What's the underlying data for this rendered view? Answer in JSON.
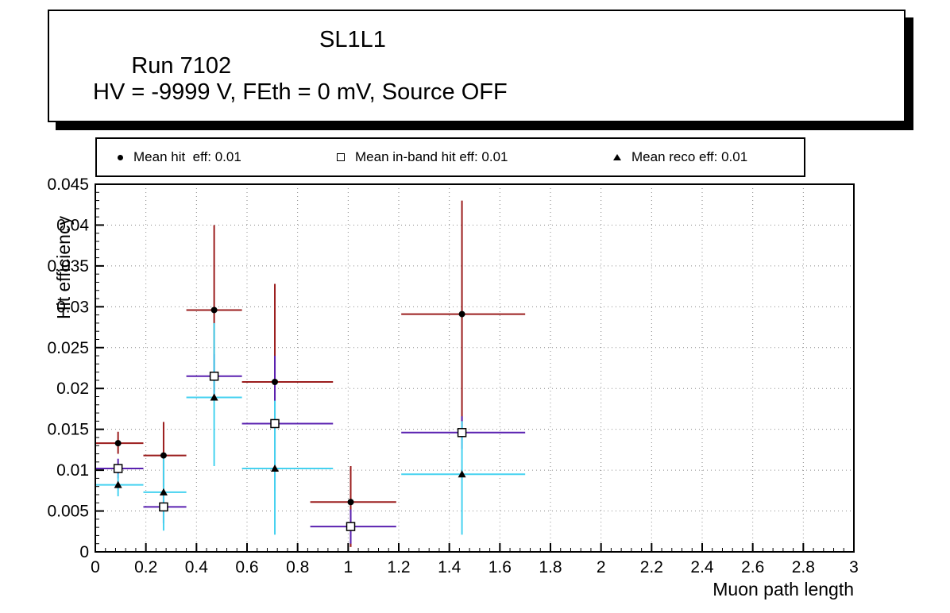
{
  "title_box": {
    "run": "Run 7102",
    "chamber": "SL1L1",
    "conditions": "HV = -9999 V, FEth = 0 mV, Source OFF"
  },
  "colors": {
    "hit_eff": "#9b1d1d",
    "inband_eff": "#5a21b0",
    "reco_eff": "#46d2f0",
    "grid": "#8a8a8a",
    "frame": "#000000"
  },
  "chart_data": {
    "type": "scatter",
    "title": "",
    "xlabel": "Muon path length",
    "ylabel": "Hit efficiency",
    "xlim": [
      0,
      3
    ],
    "ylim": [
      0,
      0.045
    ],
    "xticks": [
      0,
      0.2,
      0.4,
      0.6,
      0.8,
      1,
      1.2,
      1.4,
      1.6,
      1.8,
      2,
      2.2,
      2.4,
      2.6,
      2.8,
      3
    ],
    "yticks": [
      0,
      0.005,
      0.01,
      0.015,
      0.02,
      0.025,
      0.03,
      0.035,
      0.04,
      0.045
    ],
    "grid": "dotted",
    "legend_position": "top",
    "series": [
      {
        "name": "Mean hit  eff: 0.01",
        "marker": "circle",
        "color": "#9b1d1d",
        "points": [
          {
            "x": 0.09,
            "y": 0.0133,
            "xlow": 0.0,
            "xhigh": 0.19,
            "ylow": 0.012,
            "yhigh": 0.0147
          },
          {
            "x": 0.27,
            "y": 0.0118,
            "xlow": 0.19,
            "xhigh": 0.36,
            "ylow": 0.0079,
            "yhigh": 0.0159
          },
          {
            "x": 0.47,
            "y": 0.0296,
            "xlow": 0.36,
            "xhigh": 0.58,
            "ylow": 0.0196,
            "yhigh": 0.04
          },
          {
            "x": 0.71,
            "y": 0.0208,
            "xlow": 0.58,
            "xhigh": 0.94,
            "ylow": 0.009,
            "yhigh": 0.0328
          },
          {
            "x": 1.01,
            "y": 0.0061,
            "xlow": 0.85,
            "xhigh": 1.19,
            "ylow": 0.0006,
            "yhigh": 0.0105
          },
          {
            "x": 1.45,
            "y": 0.0291,
            "xlow": 1.21,
            "xhigh": 1.7,
            "ylow": 0.0146,
            "yhigh": 0.043
          }
        ]
      },
      {
        "name": "Mean in-band hit eff: 0.01",
        "marker": "open-square",
        "color": "#5a21b0",
        "points": [
          {
            "x": 0.09,
            "y": 0.0102,
            "xlow": 0.0,
            "xhigh": 0.19,
            "ylow": 0.009,
            "yhigh": 0.0114
          },
          {
            "x": 0.27,
            "y": 0.0055,
            "xlow": 0.19,
            "xhigh": 0.36,
            "ylow": 0.0035,
            "yhigh": 0.0076
          },
          {
            "x": 0.47,
            "y": 0.0215,
            "xlow": 0.36,
            "xhigh": 0.58,
            "ylow": 0.019,
            "yhigh": 0.0242
          },
          {
            "x": 0.71,
            "y": 0.0157,
            "xlow": 0.58,
            "xhigh": 0.94,
            "ylow": 0.0075,
            "yhigh": 0.024
          },
          {
            "x": 1.01,
            "y": 0.0031,
            "xlow": 0.85,
            "xhigh": 1.19,
            "ylow": 0.001,
            "yhigh": 0.0052
          },
          {
            "x": 1.45,
            "y": 0.0146,
            "xlow": 1.21,
            "xhigh": 1.7,
            "ylow": 0.0126,
            "yhigh": 0.0166
          }
        ]
      },
      {
        "name": "Mean reco eff: 0.01",
        "marker": "triangle",
        "color": "#46d2f0",
        "points": [
          {
            "x": 0.09,
            "y": 0.0082,
            "xlow": 0.0,
            "xhigh": 0.19,
            "ylow": 0.0068,
            "yhigh": 0.0096
          },
          {
            "x": 0.27,
            "y": 0.0073,
            "xlow": 0.19,
            "xhigh": 0.36,
            "ylow": 0.0026,
            "yhigh": 0.012
          },
          {
            "x": 0.47,
            "y": 0.0189,
            "xlow": 0.36,
            "xhigh": 0.58,
            "ylow": 0.0105,
            "yhigh": 0.028
          },
          {
            "x": 0.71,
            "y": 0.0102,
            "xlow": 0.58,
            "xhigh": 0.94,
            "ylow": 0.0021,
            "yhigh": 0.0185
          },
          {
            "x": 1.45,
            "y": 0.0095,
            "xlow": 1.21,
            "xhigh": 1.7,
            "ylow": 0.0021,
            "yhigh": 0.016
          }
        ]
      }
    ]
  }
}
